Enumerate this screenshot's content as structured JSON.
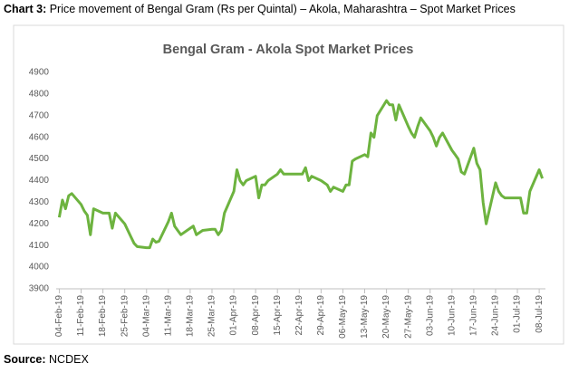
{
  "caption": {
    "label": "Chart 3:",
    "text": "Price movement of Bengal Gram (Rs per Quintal) – Akola, Maharashtra – Spot Market Prices"
  },
  "source": {
    "label": "Source:",
    "text": "NCDEX"
  },
  "chart_data": {
    "type": "line",
    "title": "Bengal Gram - Akola Spot Market Prices",
    "x": [
      "2019-02-04",
      "2019-02-05",
      "2019-02-06",
      "2019-02-07",
      "2019-02-08",
      "2019-02-11",
      "2019-02-12",
      "2019-02-13",
      "2019-02-14",
      "2019-02-15",
      "2019-02-18",
      "2019-02-19",
      "2019-02-20",
      "2019-02-21",
      "2019-02-22",
      "2019-02-25",
      "2019-02-26",
      "2019-02-27",
      "2019-02-28",
      "2019-03-01",
      "2019-03-04",
      "2019-03-05",
      "2019-03-06",
      "2019-03-07",
      "2019-03-08",
      "2019-03-11",
      "2019-03-12",
      "2019-03-13",
      "2019-03-14",
      "2019-03-15",
      "2019-03-18",
      "2019-03-19",
      "2019-03-20",
      "2019-03-21",
      "2019-03-22",
      "2019-03-25",
      "2019-03-26",
      "2019-03-27",
      "2019-03-28",
      "2019-03-29",
      "2019-04-01",
      "2019-04-02",
      "2019-04-03",
      "2019-04-04",
      "2019-04-05",
      "2019-04-08",
      "2019-04-09",
      "2019-04-10",
      "2019-04-11",
      "2019-04-12",
      "2019-04-15",
      "2019-04-16",
      "2019-04-17",
      "2019-04-18",
      "2019-04-19",
      "2019-04-22",
      "2019-04-23",
      "2019-04-24",
      "2019-04-25",
      "2019-04-26",
      "2019-04-29",
      "2019-04-30",
      "2019-05-01",
      "2019-05-02",
      "2019-05-03",
      "2019-05-06",
      "2019-05-07",
      "2019-05-08",
      "2019-05-09",
      "2019-05-10",
      "2019-05-13",
      "2019-05-14",
      "2019-05-15",
      "2019-05-16",
      "2019-05-17",
      "2019-05-20",
      "2019-05-21",
      "2019-05-22",
      "2019-05-23",
      "2019-05-24",
      "2019-05-27",
      "2019-05-28",
      "2019-05-29",
      "2019-05-30",
      "2019-05-31",
      "2019-06-03",
      "2019-06-04",
      "2019-06-05",
      "2019-06-06",
      "2019-06-07",
      "2019-06-10",
      "2019-06-11",
      "2019-06-12",
      "2019-06-13",
      "2019-06-14",
      "2019-06-17",
      "2019-06-18",
      "2019-06-19",
      "2019-06-20",
      "2019-06-21",
      "2019-06-24",
      "2019-06-25",
      "2019-06-26",
      "2019-06-27",
      "2019-06-28",
      "2019-07-01",
      "2019-07-02",
      "2019-07-03",
      "2019-07-04",
      "2019-07-05",
      "2019-07-08",
      "2019-07-09"
    ],
    "series": [
      {
        "name": "Akola",
        "color": "#6db33f",
        "values": [
          4230,
          4310,
          4270,
          4330,
          4340,
          4290,
          4260,
          4240,
          4150,
          4270,
          4250,
          4250,
          4250,
          4180,
          4250,
          4200,
          4170,
          4140,
          4110,
          4095,
          4090,
          4090,
          4130,
          4115,
          4120,
          4210,
          4250,
          4190,
          4170,
          4150,
          4180,
          4190,
          4150,
          4160,
          4170,
          4175,
          4175,
          4150,
          4170,
          4250,
          4350,
          4450,
          4400,
          4380,
          4400,
          4420,
          4320,
          4380,
          4380,
          4400,
          4430,
          4450,
          4430,
          4430,
          4430,
          4430,
          4430,
          4460,
          4400,
          4420,
          4400,
          4390,
          4380,
          4350,
          4370,
          4350,
          4380,
          4380,
          4490,
          4500,
          4520,
          4510,
          4620,
          4600,
          4700,
          4770,
          4750,
          4750,
          4680,
          4750,
          4650,
          4620,
          4600,
          4650,
          4690,
          4630,
          4600,
          4560,
          4600,
          4620,
          4540,
          4520,
          4500,
          4440,
          4430,
          4550,
          4480,
          4450,
          4300,
          4200,
          4390,
          4350,
          4330,
          4320,
          4320,
          4320,
          4320,
          4250,
          4250,
          4350,
          4450,
          4410
        ]
      }
    ],
    "xlim": [
      "2019-02-03",
      "2019-07-10"
    ],
    "xticks": [
      {
        "value": "2019-02-04",
        "label": "04-Feb-19"
      },
      {
        "value": "2019-02-11",
        "label": "11-Feb-19"
      },
      {
        "value": "2019-02-18",
        "label": "18-Feb-19"
      },
      {
        "value": "2019-02-25",
        "label": "25-Feb-19"
      },
      {
        "value": "2019-03-04",
        "label": "04-Mar-19"
      },
      {
        "value": "2019-03-11",
        "label": "11-Mar-19"
      },
      {
        "value": "2019-03-18",
        "label": "18-Mar-19"
      },
      {
        "value": "2019-03-25",
        "label": "25-Mar-19"
      },
      {
        "value": "2019-04-01",
        "label": "01-Apr-19"
      },
      {
        "value": "2019-04-08",
        "label": "08-Apr-19"
      },
      {
        "value": "2019-04-15",
        "label": "15-Apr-19"
      },
      {
        "value": "2019-04-22",
        "label": "22-Apr-19"
      },
      {
        "value": "2019-04-29",
        "label": "29-Apr-19"
      },
      {
        "value": "2019-05-06",
        "label": "06-May-19"
      },
      {
        "value": "2019-05-13",
        "label": "13-May-19"
      },
      {
        "value": "2019-05-20",
        "label": "20-May-19"
      },
      {
        "value": "2019-05-27",
        "label": "27-May-19"
      },
      {
        "value": "2019-06-03",
        "label": "03-Jun-19"
      },
      {
        "value": "2019-06-10",
        "label": "10-Jun-19"
      },
      {
        "value": "2019-06-17",
        "label": "17-Jun-19"
      },
      {
        "value": "2019-06-24",
        "label": "24-Jun-19"
      },
      {
        "value": "2019-07-01",
        "label": "01-Jul-19"
      },
      {
        "value": "2019-07-08",
        "label": "08-Jul-19"
      }
    ],
    "ylim": [
      3900,
      4900
    ],
    "yticks": [
      3900,
      4000,
      4100,
      4200,
      4300,
      4400,
      4500,
      4600,
      4700,
      4800,
      4900
    ],
    "grid": false
  }
}
